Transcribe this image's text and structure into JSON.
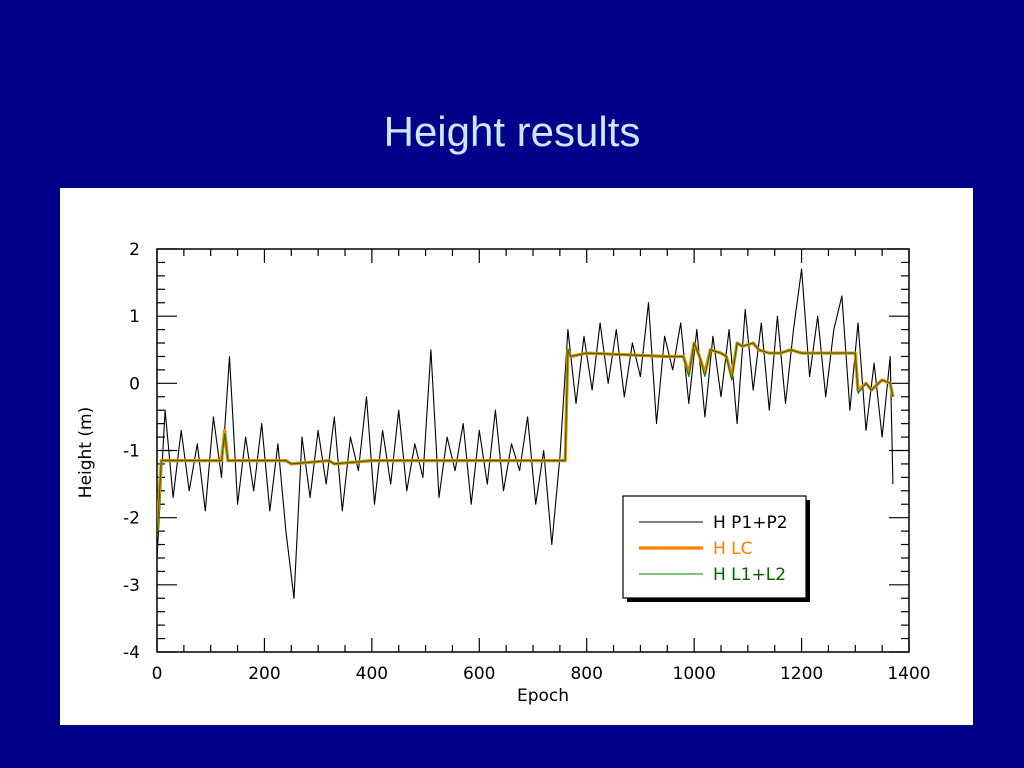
{
  "slide": {
    "title": "Height results",
    "background": "#00008b",
    "title_color": "#cce8ff"
  },
  "chart_data": {
    "type": "line",
    "title": "",
    "xlabel": "Epoch",
    "ylabel": "Height (m)",
    "xlim": [
      0,
      1400
    ],
    "ylim": [
      -4,
      2
    ],
    "xticks": [
      0,
      200,
      400,
      600,
      800,
      1000,
      1200,
      1400
    ],
    "yticks": [
      2,
      1,
      0,
      -1,
      -2,
      -3,
      -4
    ],
    "grid": false,
    "legend_position": "lower-right",
    "series": [
      {
        "name": "H P1+P2",
        "color": "#000000",
        "style": "thin",
        "x": [
          0,
          15,
          30,
          45,
          60,
          75,
          90,
          105,
          120,
          135,
          150,
          165,
          180,
          195,
          210,
          225,
          240,
          255,
          270,
          285,
          300,
          315,
          330,
          345,
          360,
          375,
          390,
          405,
          420,
          435,
          450,
          465,
          480,
          495,
          510,
          525,
          540,
          555,
          570,
          585,
          600,
          615,
          630,
          645,
          660,
          675,
          690,
          705,
          720,
          735,
          750,
          765,
          780,
          795,
          810,
          825,
          840,
          855,
          870,
          885,
          900,
          915,
          930,
          945,
          960,
          975,
          990,
          1005,
          1020,
          1035,
          1050,
          1065,
          1080,
          1095,
          1110,
          1125,
          1140,
          1155,
          1170,
          1185,
          1200,
          1215,
          1230,
          1245,
          1260,
          1275,
          1290,
          1305,
          1320,
          1335,
          1350,
          1365,
          1370
        ],
        "y": [
          -2.6,
          -0.4,
          -1.7,
          -0.7,
          -1.6,
          -0.9,
          -1.9,
          -0.5,
          -1.4,
          0.4,
          -1.8,
          -0.8,
          -1.6,
          -0.6,
          -1.9,
          -0.9,
          -2.2,
          -3.2,
          -0.8,
          -1.7,
          -0.7,
          -1.5,
          -0.5,
          -1.9,
          -0.8,
          -1.3,
          -0.2,
          -1.8,
          -0.7,
          -1.5,
          -0.4,
          -1.6,
          -0.9,
          -1.4,
          0.5,
          -1.7,
          -0.8,
          -1.3,
          -0.6,
          -1.8,
          -0.7,
          -1.5,
          -0.4,
          -1.6,
          -0.9,
          -1.3,
          -0.5,
          -1.8,
          -1.0,
          -2.4,
          -1.1,
          0.8,
          -0.3,
          0.7,
          -0.1,
          0.9,
          0.0,
          0.8,
          -0.2,
          0.6,
          0.1,
          1.2,
          -0.6,
          0.7,
          0.2,
          0.9,
          -0.3,
          0.8,
          -0.5,
          0.7,
          -0.2,
          0.8,
          -0.6,
          1.1,
          -0.1,
          0.9,
          -0.4,
          1.0,
          -0.3,
          0.8,
          1.7,
          0.1,
          1.0,
          -0.2,
          0.8,
          1.3,
          -0.4,
          0.9,
          -0.7,
          0.3,
          -0.8,
          0.4,
          -1.5
        ]
      },
      {
        "name": "H LC",
        "color": "#ff8000",
        "style": "thick",
        "x": [
          0,
          8,
          20,
          120,
          126,
          132,
          140,
          240,
          250,
          320,
          330,
          400,
          500,
          600,
          700,
          760,
          765,
          770,
          800,
          950,
          980,
          990,
          1000,
          1010,
          1020,
          1030,
          1050,
          1060,
          1070,
          1080,
          1090,
          1110,
          1120,
          1140,
          1160,
          1180,
          1200,
          1260,
          1300,
          1305,
          1320,
          1330,
          1350,
          1365,
          1370
        ],
        "y": [
          -2.2,
          -1.15,
          -1.15,
          -1.15,
          -0.7,
          -1.15,
          -1.15,
          -1.15,
          -1.2,
          -1.15,
          -1.2,
          -1.15,
          -1.15,
          -1.15,
          -1.15,
          -1.15,
          0.5,
          0.4,
          0.45,
          0.4,
          0.4,
          0.15,
          0.6,
          0.4,
          0.15,
          0.5,
          0.45,
          0.4,
          0.1,
          0.6,
          0.55,
          0.6,
          0.5,
          0.45,
          0.45,
          0.5,
          0.45,
          0.45,
          0.45,
          -0.1,
          0.0,
          -0.1,
          0.05,
          0.0,
          -0.2
        ]
      },
      {
        "name": "H L1+L2",
        "color": "#008000",
        "style": "thin",
        "x": [
          0,
          8,
          20,
          120,
          126,
          132,
          140,
          240,
          250,
          320,
          330,
          400,
          500,
          600,
          700,
          760,
          765,
          770,
          800,
          950,
          980,
          990,
          1000,
          1010,
          1020,
          1030,
          1050,
          1060,
          1070,
          1080,
          1090,
          1110,
          1120,
          1140,
          1160,
          1180,
          1200,
          1260,
          1300,
          1305,
          1320,
          1330,
          1350,
          1365,
          1370
        ],
        "y": [
          -2.3,
          -1.15,
          -1.15,
          -1.15,
          -0.75,
          -1.15,
          -1.15,
          -1.15,
          -1.2,
          -1.15,
          -1.2,
          -1.15,
          -1.15,
          -1.15,
          -1.15,
          -1.15,
          0.5,
          0.4,
          0.45,
          0.4,
          0.4,
          0.1,
          0.6,
          0.4,
          0.1,
          0.5,
          0.45,
          0.4,
          0.05,
          0.6,
          0.55,
          0.6,
          0.5,
          0.45,
          0.45,
          0.5,
          0.45,
          0.45,
          0.45,
          -0.15,
          0.0,
          -0.1,
          0.05,
          0.0,
          -0.2
        ]
      }
    ],
    "legend_text_colors": [
      "#000000",
      "#ff8000",
      "#006400"
    ]
  }
}
